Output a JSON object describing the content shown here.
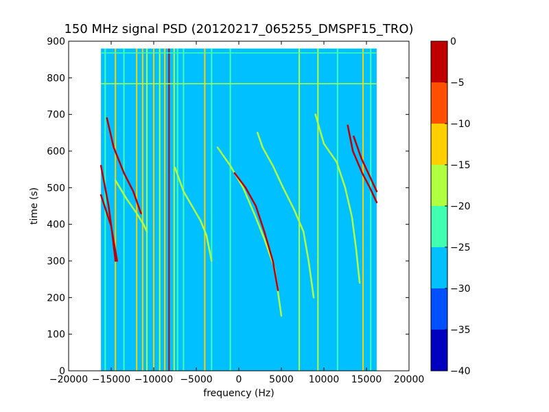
{
  "chart_data": {
    "type": "heatmap",
    "subtype": "spectrogram",
    "title": "150 MHz signal PSD (20120217_065255_DMSPF15_TRO)",
    "xlabel": "frequency (Hz)",
    "ylabel": "time (s)",
    "xlim": [
      -20000,
      20000
    ],
    "ylim": [
      0,
      900
    ],
    "x_ticks": [
      -20000,
      -15000,
      -10000,
      -5000,
      0,
      5000,
      10000,
      15000,
      20000
    ],
    "x_tick_labels": [
      "−20000",
      "−15000",
      "−10000",
      "−5000",
      "0",
      "5000",
      "10000",
      "15000",
      "20000"
    ],
    "y_ticks": [
      0,
      100,
      200,
      300,
      400,
      500,
      600,
      700,
      800,
      900
    ],
    "y_tick_labels": [
      "0",
      "100",
      "200",
      "300",
      "400",
      "500",
      "600",
      "700",
      "800",
      "900"
    ],
    "data_extent": {
      "freq_hz": [
        -16200,
        16200
      ],
      "time_s": [
        0,
        880
      ]
    },
    "background_level_db": -27.5,
    "colorbar": {
      "ticks": [
        0,
        -5,
        -10,
        -15,
        -20,
        -25,
        -30,
        -35,
        -40
      ],
      "tick_labels": [
        "0",
        "−5",
        "−10",
        "−15",
        "−20",
        "−25",
        "−30",
        "−35",
        "−40"
      ],
      "bands": [
        {
          "min": -40,
          "max": -35,
          "color": "#0000c0"
        },
        {
          "min": -35,
          "max": -30,
          "color": "#0050ff"
        },
        {
          "min": -30,
          "max": -25,
          "color": "#00c0ff"
        },
        {
          "min": -25,
          "max": -20,
          "color": "#40ffb0"
        },
        {
          "min": -20,
          "max": -15,
          "color": "#b0ff40"
        },
        {
          "min": -15,
          "max": -10,
          "color": "#ffd000"
        },
        {
          "min": -10,
          "max": -5,
          "color": "#ff5000"
        },
        {
          "min": -5,
          "max": 0,
          "color": "#c00000"
        }
      ]
    },
    "vertical_lines": [
      {
        "freq_hz": -15700,
        "level_db": -22
      },
      {
        "freq_hz": -14500,
        "level_db": -12
      },
      {
        "freq_hz": -13500,
        "level_db": -22
      },
      {
        "freq_hz": -12000,
        "level_db": -12
      },
      {
        "freq_hz": -11300,
        "level_db": -12
      },
      {
        "freq_hz": -10800,
        "level_db": -17
      },
      {
        "freq_hz": -10000,
        "level_db": -12
      },
      {
        "freq_hz": -9300,
        "level_db": -17
      },
      {
        "freq_hz": -8700,
        "level_db": -12
      },
      {
        "freq_hz": -8200,
        "level_db": -2
      },
      {
        "freq_hz": -7600,
        "level_db": -17
      },
      {
        "freq_hz": -7200,
        "level_db": -22
      },
      {
        "freq_hz": -6500,
        "level_db": -22
      },
      {
        "freq_hz": -4000,
        "level_db": -12
      },
      {
        "freq_hz": -3200,
        "level_db": -22
      },
      {
        "freq_hz": -1000,
        "level_db": -22
      },
      {
        "freq_hz": 7100,
        "level_db": -17
      },
      {
        "freq_hz": 9300,
        "level_db": -17
      },
      {
        "freq_hz": 11600,
        "level_db": -22
      },
      {
        "freq_hz": 14600,
        "level_db": -12
      },
      {
        "freq_hz": 15500,
        "level_db": -22
      }
    ],
    "doppler_traces": [
      {
        "level_db": -3,
        "points": [
          [
            -16200,
            560
          ],
          [
            -15300,
            450
          ],
          [
            -14900,
            380
          ],
          [
            -14600,
            320
          ],
          [
            -14500,
            300
          ]
        ]
      },
      {
        "level_db": -3,
        "points": [
          [
            -16200,
            480
          ],
          [
            -15000,
            395
          ],
          [
            -14600,
            340
          ],
          [
            -14300,
            300
          ]
        ]
      },
      {
        "level_db": -3,
        "points": [
          [
            -15500,
            690
          ],
          [
            -14700,
            610
          ],
          [
            -13500,
            540
          ],
          [
            -12400,
            490
          ],
          [
            -11500,
            430
          ]
        ]
      },
      {
        "level_db": -18,
        "points": [
          [
            -14500,
            520
          ],
          [
            -13200,
            470
          ],
          [
            -12000,
            430
          ],
          [
            -11200,
            400
          ],
          [
            -10800,
            380
          ]
        ]
      },
      {
        "level_db": -18,
        "points": [
          [
            -7500,
            555
          ],
          [
            -6500,
            490
          ],
          [
            -5500,
            450
          ],
          [
            -4500,
            410
          ],
          [
            -3800,
            370
          ],
          [
            -3200,
            300
          ]
        ]
      },
      {
        "level_db": -18,
        "points": [
          [
            -2500,
            610
          ],
          [
            -1000,
            560
          ],
          [
            500,
            500
          ],
          [
            1800,
            430
          ],
          [
            3000,
            360
          ],
          [
            4200,
            280
          ],
          [
            5000,
            150
          ]
        ]
      },
      {
        "level_db": -3,
        "points": [
          [
            -500,
            540
          ],
          [
            800,
            500
          ],
          [
            2000,
            450
          ],
          [
            3000,
            380
          ],
          [
            4000,
            300
          ],
          [
            4600,
            220
          ]
        ]
      },
      {
        "level_db": -18,
        "points": [
          [
            2200,
            650
          ],
          [
            2800,
            610
          ],
          [
            4000,
            560
          ],
          [
            5200,
            500
          ],
          [
            6500,
            440
          ],
          [
            7600,
            380
          ],
          [
            8200,
            300
          ],
          [
            8800,
            200
          ]
        ]
      },
      {
        "level_db": -18,
        "points": [
          [
            9000,
            700
          ],
          [
            10000,
            620
          ],
          [
            11500,
            570
          ],
          [
            12500,
            500
          ],
          [
            13300,
            420
          ],
          [
            13800,
            330
          ],
          [
            14200,
            240
          ]
        ]
      },
      {
        "level_db": -3,
        "points": [
          [
            12800,
            670
          ],
          [
            13400,
            600
          ],
          [
            14500,
            540
          ],
          [
            15400,
            500
          ],
          [
            16200,
            460
          ]
        ]
      },
      {
        "level_db": -3,
        "points": [
          [
            13500,
            640
          ],
          [
            14400,
            580
          ],
          [
            15400,
            530
          ],
          [
            16200,
            490
          ]
        ]
      }
    ],
    "horizontal_lines": [
      {
        "time_s": 784,
        "level_db": -17
      },
      {
        "time_s": 868,
        "level_db": -22
      }
    ]
  }
}
